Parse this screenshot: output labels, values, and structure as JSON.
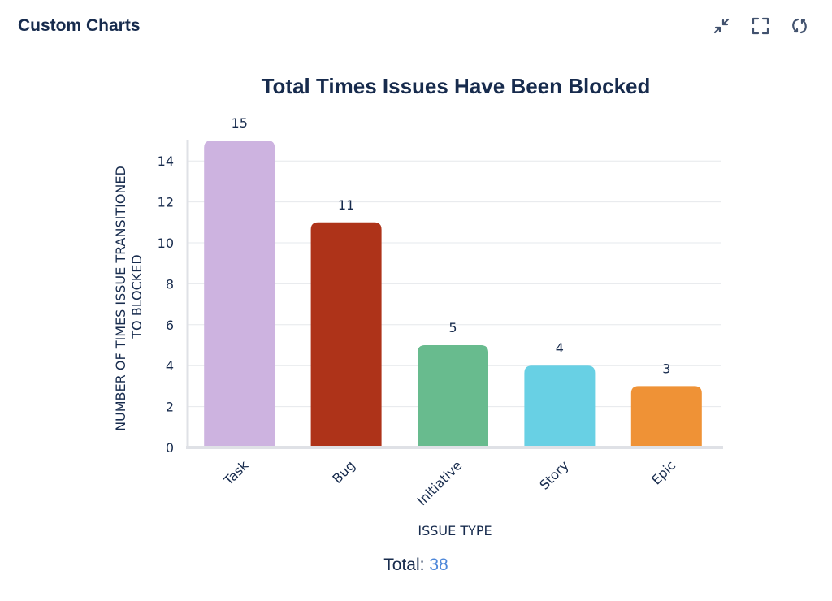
{
  "header": {
    "title": "Custom Charts",
    "icons": [
      "collapse-icon",
      "fullscreen-icon",
      "refresh-icon"
    ]
  },
  "chart_data": {
    "type": "bar",
    "title": "Total Times Issues Have Been Blocked",
    "xlabel": "ISSUE TYPE",
    "ylabel_lines": [
      "NUMBER OF TIMES ISSUE TRANSITIONED",
      "TO BLOCKED"
    ],
    "categories": [
      "Task",
      "Bug",
      "Initiative",
      "Story",
      "Epic"
    ],
    "values": [
      15,
      11,
      5,
      4,
      3
    ],
    "colors": [
      "#cdb3e0",
      "#ae3319",
      "#68bb8e",
      "#68d0e4",
      "#ef9236"
    ],
    "ylim": [
      0,
      15
    ],
    "yticks": [
      0,
      2,
      4,
      6,
      8,
      10,
      12,
      14
    ],
    "grid": true,
    "data_labels": true
  },
  "total": {
    "label": "Total:",
    "value": "38"
  }
}
